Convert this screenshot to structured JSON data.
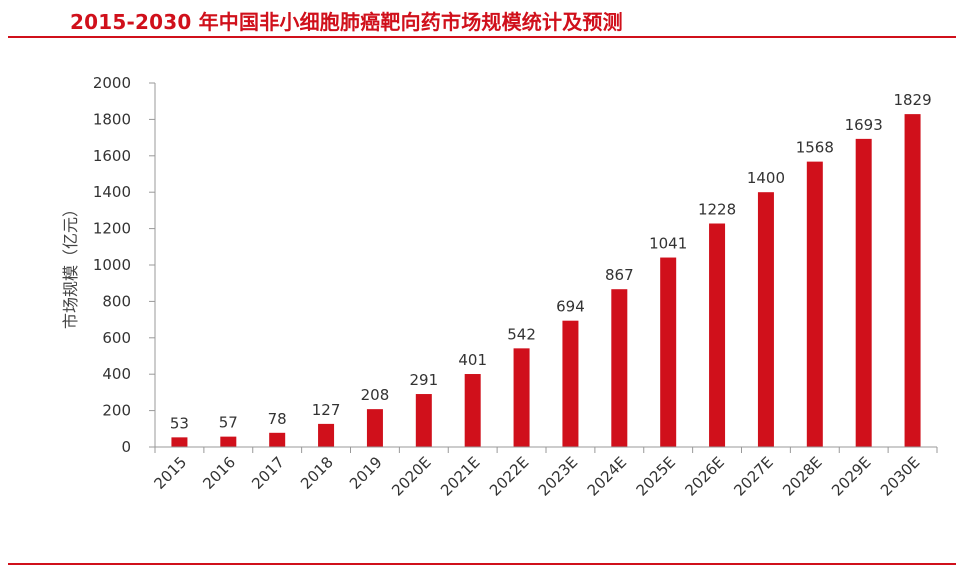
{
  "colors": {
    "accent": "#D0101B",
    "axis": "#999999",
    "text": "#333333"
  },
  "chart_data": {
    "type": "bar",
    "title": "2015-2030 年中国非小细胞肺癌靶向药市场规模统计及预测",
    "xlabel": "",
    "ylabel": "市场规模（亿元）",
    "ylim": [
      0,
      2000
    ],
    "yticks": [
      0,
      200,
      400,
      600,
      800,
      1000,
      1200,
      1400,
      1600,
      1800,
      2000
    ],
    "categories": [
      "2015",
      "2016",
      "2017",
      "2018",
      "2019",
      "2020E",
      "2021E",
      "2022E",
      "2023E",
      "2024E",
      "2025E",
      "2026E",
      "2027E",
      "2028E",
      "2029E",
      "2030E"
    ],
    "values": [
      53,
      57,
      78,
      127,
      208,
      291,
      401,
      542,
      694,
      867,
      1041,
      1228,
      1400,
      1568,
      1693,
      1829
    ],
    "grid": false,
    "legend": "none"
  }
}
